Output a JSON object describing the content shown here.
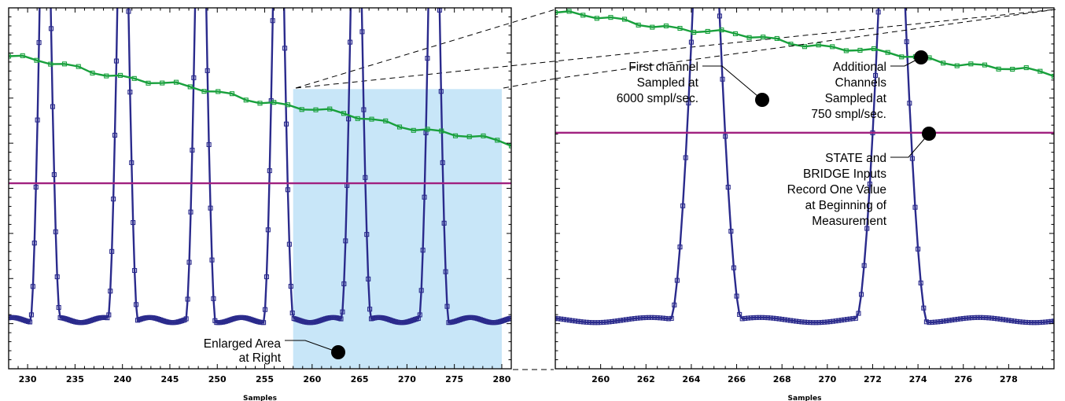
{
  "chart_data": [
    {
      "type": "line",
      "xlabel": "Samples",
      "xlim": [
        228,
        281
      ],
      "x_ticks": [
        230,
        235,
        240,
        245,
        250,
        255,
        260,
        265,
        270,
        275,
        280
      ],
      "ylim": [
        0,
        1
      ],
      "y_tick_labels": "none",
      "grid": false,
      "highlight_region": {
        "x": [
          258,
          280
        ],
        "color": "#c8e6f8"
      },
      "series": [
        {
          "color": "#2a2a8c",
          "marker": "square",
          "shape": "periodic peaks",
          "period_samples": 8.2,
          "sample_rate": "6000 smpl/sec"
        },
        {
          "color": "#18a03c",
          "marker": "square",
          "y_start": 0.866,
          "y_end": 0.622,
          "sample_rate": "750 smpl/sec"
        },
        {
          "color": "#a0207f",
          "marker": "none",
          "y_constant": 0.514
        }
      ],
      "annotations": [
        {
          "lines": [
            "Enlarged Area",
            "at Right"
          ]
        }
      ]
    },
    {
      "type": "line",
      "xlabel": "Samples",
      "xlim": [
        258,
        280
      ],
      "x_ticks": [
        260,
        262,
        264,
        266,
        268,
        270,
        272,
        274,
        276,
        278
      ],
      "ylim": [
        0,
        1
      ],
      "y_tick_labels": "none",
      "grid": false,
      "series": [
        {
          "color": "#2a2a8c",
          "marker": "square",
          "shape": "periodic peaks"
        },
        {
          "color": "#18a03c",
          "marker": "square",
          "y_start": 0.987,
          "y_end": 0.815
        },
        {
          "color": "#a0207f",
          "marker": "none",
          "y_constant": 0.654
        }
      ],
      "annotations": [
        {
          "lines": [
            "First channel",
            "Sampled at",
            "6000 smpl/sec."
          ]
        },
        {
          "lines": [
            "Additional",
            "Channels",
            "Sampled at",
            "750 smpl/sec."
          ]
        },
        {
          "lines": [
            "STATE and",
            "BRIDGE Inputs",
            "Record One Value",
            "at Beginning of",
            "Measurement"
          ]
        }
      ]
    }
  ]
}
